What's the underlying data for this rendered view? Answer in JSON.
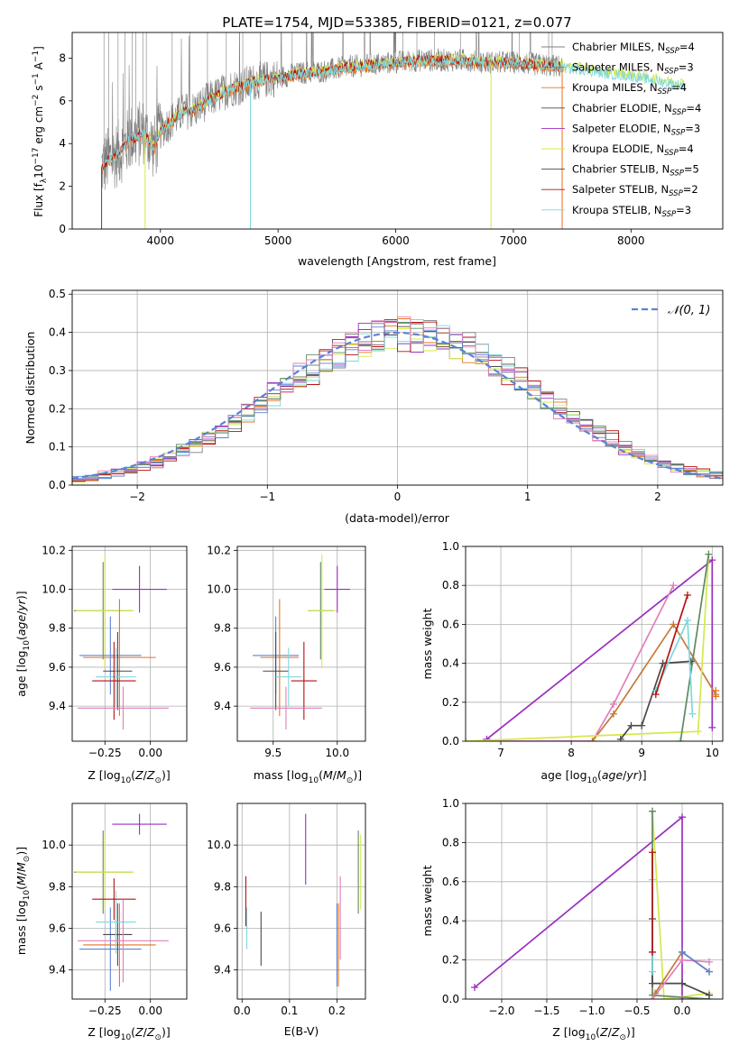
{
  "title": "PLATE=1754, MJD=53385, FIBERID=0121, z=0.077",
  "legend": [
    {
      "main": "Chabrier MILES, N",
      "sub": "SSP",
      "tail": "=4",
      "color": "#7f7f7f"
    },
    {
      "main": "Salpeter MILES, N",
      "sub": "SSP",
      "tail": "=3",
      "color": "#7f7f7f"
    },
    {
      "main": "Kroupa MILES, N",
      "sub": "SSP",
      "tail": "=4",
      "color": "#e8731f"
    },
    {
      "main": "Chabrier ELODIE, N",
      "sub": "SSP",
      "tail": "=4",
      "color": "#4a4a4a"
    },
    {
      "main": "Salpeter ELODIE, N",
      "sub": "SSP",
      "tail": "=3",
      "color": "#9a2fc0"
    },
    {
      "main": "Kroupa ELODIE, N",
      "sub": "SSP",
      "tail": "=4",
      "color": "#d6e84a"
    },
    {
      "main": "Chabrier STELIB, N",
      "sub": "SSP",
      "tail": "=5",
      "color": "#4a4a4a"
    },
    {
      "main": "Salpeter STELIB, N",
      "sub": "SSP",
      "tail": "=2",
      "color": "#b51212"
    },
    {
      "main": "Kroupa STELIB, N",
      "sub": "SSP",
      "tail": "=3",
      "color": "#7dd8df"
    }
  ],
  "colors": {
    "gray": "#7f7f7f",
    "orange": "#e8731f",
    "dark": "#4a4a4a",
    "purple": "#9a2fc0",
    "yellow": "#d6e84a",
    "red": "#b51212",
    "cyan": "#7dd8df",
    "blue": "#5b82d6",
    "pink": "#e07fbd",
    "green": "#5f8a62",
    "bronze": "#c47a3a"
  },
  "chart_data": [
    {
      "id": "spectrum",
      "type": "line",
      "xlabel": "wavelength [Angstrom, rest frame]",
      "ylabel_main": "Flux [f",
      "xlim": [
        3250,
        8780
      ],
      "ylim": [
        0,
        9.2
      ],
      "xticks": [
        4000,
        5000,
        6000,
        7000,
        8000
      ],
      "yticks": [
        0,
        2,
        4,
        6,
        8
      ],
      "envelope": {
        "x": [
          3500,
          3550,
          3600,
          3650,
          3700,
          3750,
          3800,
          3850,
          3900,
          3950,
          4000,
          4100,
          4200,
          4300,
          4400,
          4500,
          4600,
          4700,
          4800,
          4900,
          5000,
          5200,
          5400,
          5600,
          5800,
          6000,
          6200,
          6400,
          6600,
          6800,
          7000,
          7200,
          7400,
          7600,
          7800,
          8000,
          8200,
          8400
        ],
        "y": [
          2.9,
          3.2,
          3.4,
          3.6,
          3.9,
          4.3,
          4.3,
          4.6,
          4.2,
          3.8,
          4.6,
          5.1,
          5.5,
          5.6,
          6.0,
          6.3,
          6.6,
          6.7,
          6.9,
          7.0,
          7.1,
          7.3,
          7.4,
          7.6,
          7.7,
          7.8,
          7.9,
          7.9,
          7.9,
          7.8,
          7.8,
          7.7,
          7.6,
          7.5,
          7.3,
          7.2,
          7.0,
          6.8
        ]
      }
    },
    {
      "id": "residuals",
      "type": "line",
      "xlabel": "(data-model)/error",
      "ylabel": "Normed distribution",
      "xlim": [
        -2.5,
        2.5
      ],
      "ylim": [
        0,
        0.51
      ],
      "xticks": [
        -2,
        -1,
        0,
        1,
        2
      ],
      "yticks": [
        0.0,
        0.1,
        0.2,
        0.3,
        0.4,
        0.5
      ],
      "legend": "𝒩(0, 1)",
      "gaussian": {
        "mean": 0,
        "sigma": 1
      }
    },
    {
      "id": "age_vs_Z",
      "type": "scatter",
      "xlabel": "Z [log",
      "ylabel": "age  [log",
      "xlim": [
        -0.43,
        0.2
      ],
      "ylim": [
        9.22,
        10.22
      ],
      "xticks": [
        -0.25,
        0.0
      ],
      "yticks": [
        9.4,
        9.6,
        9.8,
        10.0,
        10.2
      ],
      "points": [
        {
          "x": -0.06,
          "y": 10.0,
          "xerr": 0.15,
          "yerr": 0.12,
          "c": "purple"
        },
        {
          "x": -0.26,
          "y": 9.89,
          "xerr": 0.16,
          "yerr": 0.25,
          "c": "green"
        },
        {
          "x": -0.25,
          "y": 9.89,
          "xerr": 0.16,
          "yerr": 0.29,
          "c": "yellow"
        },
        {
          "x": -0.22,
          "y": 9.66,
          "xerr": 0.17,
          "yerr": 0.2,
          "c": "blue"
        },
        {
          "x": -0.17,
          "y": 9.65,
          "xerr": 0.2,
          "yerr": 0.3,
          "c": "orange"
        },
        {
          "x": -0.18,
          "y": 9.58,
          "xerr": 0.08,
          "yerr": 0.2,
          "c": "dark"
        },
        {
          "x": -0.19,
          "y": 9.55,
          "xerr": 0.11,
          "yerr": 0.15,
          "c": "cyan"
        },
        {
          "x": -0.2,
          "y": 9.53,
          "xerr": 0.12,
          "yerr": 0.2,
          "c": "red"
        },
        {
          "x": -0.15,
          "y": 9.39,
          "xerr": 0.25,
          "yerr": 0.11,
          "c": "pink"
        }
      ]
    },
    {
      "id": "age_vs_mass",
      "type": "scatter",
      "xlabel": "mass [log",
      "xlim": [
        9.22,
        10.22
      ],
      "ylim": [
        9.22,
        10.22
      ],
      "xticks": [
        9.5,
        10.0
      ],
      "yticks": [
        9.4,
        9.6,
        9.8,
        10.0,
        10.2
      ],
      "points": [
        {
          "x": 10.0,
          "y": 10.0,
          "xerr": 0.1,
          "yerr": 0.12,
          "c": "purple"
        },
        {
          "x": 9.87,
          "y": 9.89,
          "xerr": 0.1,
          "yerr": 0.25,
          "c": "green"
        },
        {
          "x": 9.88,
          "y": 9.89,
          "xerr": 0.11,
          "yerr": 0.29,
          "c": "yellow"
        },
        {
          "x": 9.52,
          "y": 9.66,
          "xerr": 0.18,
          "yerr": 0.2,
          "c": "blue"
        },
        {
          "x": 9.55,
          "y": 9.65,
          "xerr": 0.15,
          "yerr": 0.3,
          "c": "orange"
        },
        {
          "x": 9.52,
          "y": 9.58,
          "xerr": 0.1,
          "yerr": 0.2,
          "c": "dark"
        },
        {
          "x": 9.62,
          "y": 9.55,
          "xerr": 0.1,
          "yerr": 0.15,
          "c": "cyan"
        },
        {
          "x": 9.74,
          "y": 9.53,
          "xerr": 0.1,
          "yerr": 0.2,
          "c": "red"
        },
        {
          "x": 9.6,
          "y": 9.39,
          "xerr": 0.28,
          "yerr": 0.11,
          "c": "pink"
        }
      ]
    },
    {
      "id": "weight_vs_age",
      "type": "line",
      "xlabel": "age  [log",
      "ylabel": "mass weight",
      "xlim": [
        6.5,
        10.15
      ],
      "ylim": [
        0,
        1.0
      ],
      "xticks": [
        7,
        8,
        9,
        10
      ],
      "yticks": [
        0.0,
        0.2,
        0.4,
        0.6,
        0.8,
        1.0
      ],
      "series": [
        {
          "c": "purple",
          "pts": [
            [
              6.8,
              0.01
            ],
            [
              10.0,
              0.93
            ],
            [
              10.0,
              0.07
            ]
          ]
        },
        {
          "c": "pink",
          "pts": [
            [
              6.5,
              0.0
            ],
            [
              8.3,
              0.0
            ],
            [
              8.6,
              0.19
            ],
            [
              9.45,
              0.8
            ]
          ]
        },
        {
          "c": "bronze",
          "pts": [
            [
              8.3,
              0.0
            ],
            [
              8.6,
              0.14
            ],
            [
              9.45,
              0.6
            ],
            [
              10.05,
              0.24
            ]
          ]
        },
        {
          "c": "yellow",
          "pts": [
            [
              6.5,
              0.0
            ],
            [
              9.8,
              0.05
            ],
            [
              9.95,
              0.96
            ]
          ]
        },
        {
          "c": "green",
          "pts": [
            [
              9.55,
              0.0
            ],
            [
              9.95,
              0.96
            ]
          ]
        },
        {
          "c": "dark",
          "pts": [
            [
              8.7,
              0.01
            ],
            [
              8.85,
              0.08
            ],
            [
              9.0,
              0.08
            ],
            [
              9.3,
              0.4
            ],
            [
              9.7,
              0.41
            ]
          ]
        },
        {
          "c": "cyan",
          "pts": [
            [
              9.2,
              0.26
            ],
            [
              9.65,
              0.62
            ],
            [
              9.72,
              0.14
            ]
          ]
        },
        {
          "c": "red",
          "pts": [
            [
              9.2,
              0.24
            ],
            [
              9.65,
              0.75
            ]
          ]
        },
        {
          "c": "orange",
          "pts": [
            [
              10.05,
              0.23
            ],
            [
              10.05,
              0.26
            ]
          ]
        }
      ]
    },
    {
      "id": "mass_vs_Z",
      "type": "scatter",
      "xlabel": "Z [log",
      "ylabel": "mass [log",
      "xlim": [
        -0.43,
        0.2
      ],
      "ylim": [
        9.26,
        10.2
      ],
      "xticks": [
        -0.25,
        0.0
      ],
      "yticks": [
        9.4,
        9.6,
        9.8,
        10.0
      ],
      "points": [
        {
          "x": -0.06,
          "y": 10.1,
          "xerr": 0.15,
          "yerr": 0.05,
          "c": "purple"
        },
        {
          "x": -0.26,
          "y": 9.87,
          "xerr": 0.16,
          "yerr": 0.2,
          "c": "green"
        },
        {
          "x": -0.25,
          "y": 9.87,
          "xerr": 0.16,
          "yerr": 0.18,
          "c": "yellow"
        },
        {
          "x": -0.22,
          "y": 9.5,
          "xerr": 0.17,
          "yerr": 0.2,
          "c": "blue"
        },
        {
          "x": -0.17,
          "y": 9.52,
          "xerr": 0.2,
          "yerr": 0.2,
          "c": "orange"
        },
        {
          "x": -0.18,
          "y": 9.57,
          "xerr": 0.08,
          "yerr": 0.15,
          "c": "dark"
        },
        {
          "x": -0.19,
          "y": 9.63,
          "xerr": 0.11,
          "yerr": 0.15,
          "c": "cyan"
        },
        {
          "x": -0.2,
          "y": 9.74,
          "xerr": 0.12,
          "yerr": 0.1,
          "c": "red"
        },
        {
          "x": -0.15,
          "y": 9.54,
          "xerr": 0.25,
          "yerr": 0.2,
          "c": "pink"
        }
      ]
    },
    {
      "id": "mass_vs_EBV",
      "type": "scatter",
      "xlabel": "E(B-V)",
      "xlim": [
        -0.01,
        0.26
      ],
      "ylim": [
        9.26,
        10.2
      ],
      "xticks": [
        0.0,
        0.1,
        0.2
      ],
      "yticks": [
        9.4,
        9.6,
        9.8,
        10.0
      ],
      "points": [
        {
          "x": 0.134,
          "y": 9.98,
          "yerr": 0.17,
          "c": "purple"
        },
        {
          "x": 0.245,
          "y": 9.87,
          "yerr": 0.2,
          "c": "green"
        },
        {
          "x": 0.25,
          "y": 9.87,
          "yerr": 0.18,
          "c": "yellow"
        },
        {
          "x": 0.2,
          "y": 9.52,
          "yerr": 0.2,
          "c": "blue"
        },
        {
          "x": 0.203,
          "y": 9.52,
          "yerr": 0.2,
          "c": "orange"
        },
        {
          "x": 0.04,
          "y": 9.55,
          "yerr": 0.13,
          "c": "dark"
        },
        {
          "x": 0.01,
          "y": 9.6,
          "yerr": 0.1,
          "c": "cyan"
        },
        {
          "x": 0.008,
          "y": 9.73,
          "yerr": 0.12,
          "c": "red"
        },
        {
          "x": 0.207,
          "y": 9.65,
          "yerr": 0.2,
          "c": "pink"
        }
      ]
    },
    {
      "id": "weight_vs_Z",
      "type": "line",
      "xlabel": "Z [log",
      "ylabel": "mass weight",
      "xlim": [
        -2.4,
        0.45
      ],
      "ylim": [
        0,
        1.0
      ],
      "xticks": [
        -2.0,
        -1.5,
        -1.0,
        -0.5,
        0.0
      ],
      "yticks": [
        0.0,
        0.2,
        0.4,
        0.6,
        0.8,
        1.0
      ],
      "series": [
        {
          "c": "purple",
          "pts": [
            [
              -2.3,
              0.06
            ],
            [
              0.0,
              0.93
            ],
            [
              0.0,
              0.0
            ]
          ]
        },
        {
          "c": "yellow",
          "pts": [
            [
              -0.33,
              0.96
            ],
            [
              -0.2,
              0.0
            ],
            [
              0.3,
              0.03
            ]
          ]
        },
        {
          "c": "green",
          "pts": [
            [
              -0.33,
              0.96
            ],
            [
              -0.33,
              0.02
            ],
            [
              0.3,
              0.0
            ]
          ]
        },
        {
          "c": "dark",
          "pts": [
            [
              -0.33,
              0.41
            ],
            [
              -0.33,
              0.08
            ],
            [
              0.0,
              0.08
            ],
            [
              0.3,
              0.02
            ]
          ]
        },
        {
          "c": "cyan",
          "pts": [
            [
              -0.33,
              0.61
            ],
            [
              -0.33,
              0.14
            ]
          ]
        },
        {
          "c": "red",
          "pts": [
            [
              -0.33,
              0.75
            ],
            [
              -0.33,
              0.24
            ]
          ]
        },
        {
          "c": "pink",
          "pts": [
            [
              -0.33,
              0.0
            ],
            [
              0.0,
              0.2
            ],
            [
              0.3,
              0.19
            ]
          ]
        },
        {
          "c": "bronze",
          "pts": [
            [
              -0.3,
              0.03
            ],
            [
              0.0,
              0.24
            ],
            [
              0.3,
              0.14
            ]
          ]
        },
        {
          "c": "blue",
          "pts": [
            [
              0.0,
              0.24
            ],
            [
              0.3,
              0.14
            ]
          ]
        }
      ]
    }
  ]
}
